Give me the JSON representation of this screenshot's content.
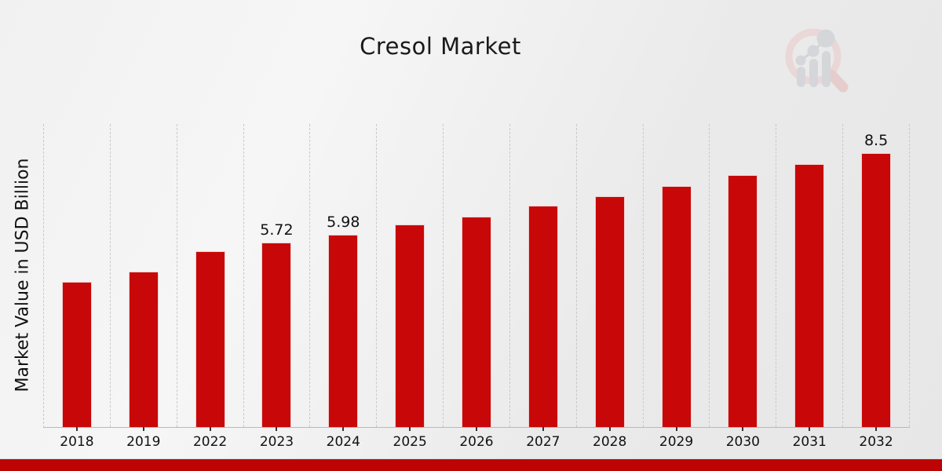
{
  "header": {
    "title": "Cresol Market"
  },
  "y_axis": {
    "label": "Market Value in USD Billion"
  },
  "logo": {
    "name": "market-research-future-watermark"
  },
  "colors": {
    "bar": "#c80808",
    "footer_strip": "#bd0404",
    "gridline": "#c9c9c9",
    "background": "#ededed"
  },
  "chart_data": {
    "type": "bar",
    "title": "Cresol Market",
    "xlabel": "",
    "ylabel": "Market Value in USD Billion",
    "categories": [
      "2018",
      "2019",
      "2022",
      "2023",
      "2024",
      "2025",
      "2026",
      "2027",
      "2028",
      "2029",
      "2030",
      "2031",
      "2032"
    ],
    "values": [
      4.5,
      4.82,
      5.47,
      5.72,
      5.98,
      6.29,
      6.54,
      6.88,
      7.17,
      7.49,
      7.83,
      8.18,
      8.5
    ],
    "data_labels": [
      "",
      "",
      "",
      "5.72",
      "5.98",
      "",
      "",
      "",
      "",
      "",
      "",
      "",
      "8.5"
    ],
    "series_name": "Market Value in USD Billion",
    "bar_color": "#c80808",
    "grid": "vertical-dashed-category-boundaries",
    "legend": "none",
    "ylim": [
      0,
      9.4
    ],
    "y_axis_ticks_visible": false
  }
}
